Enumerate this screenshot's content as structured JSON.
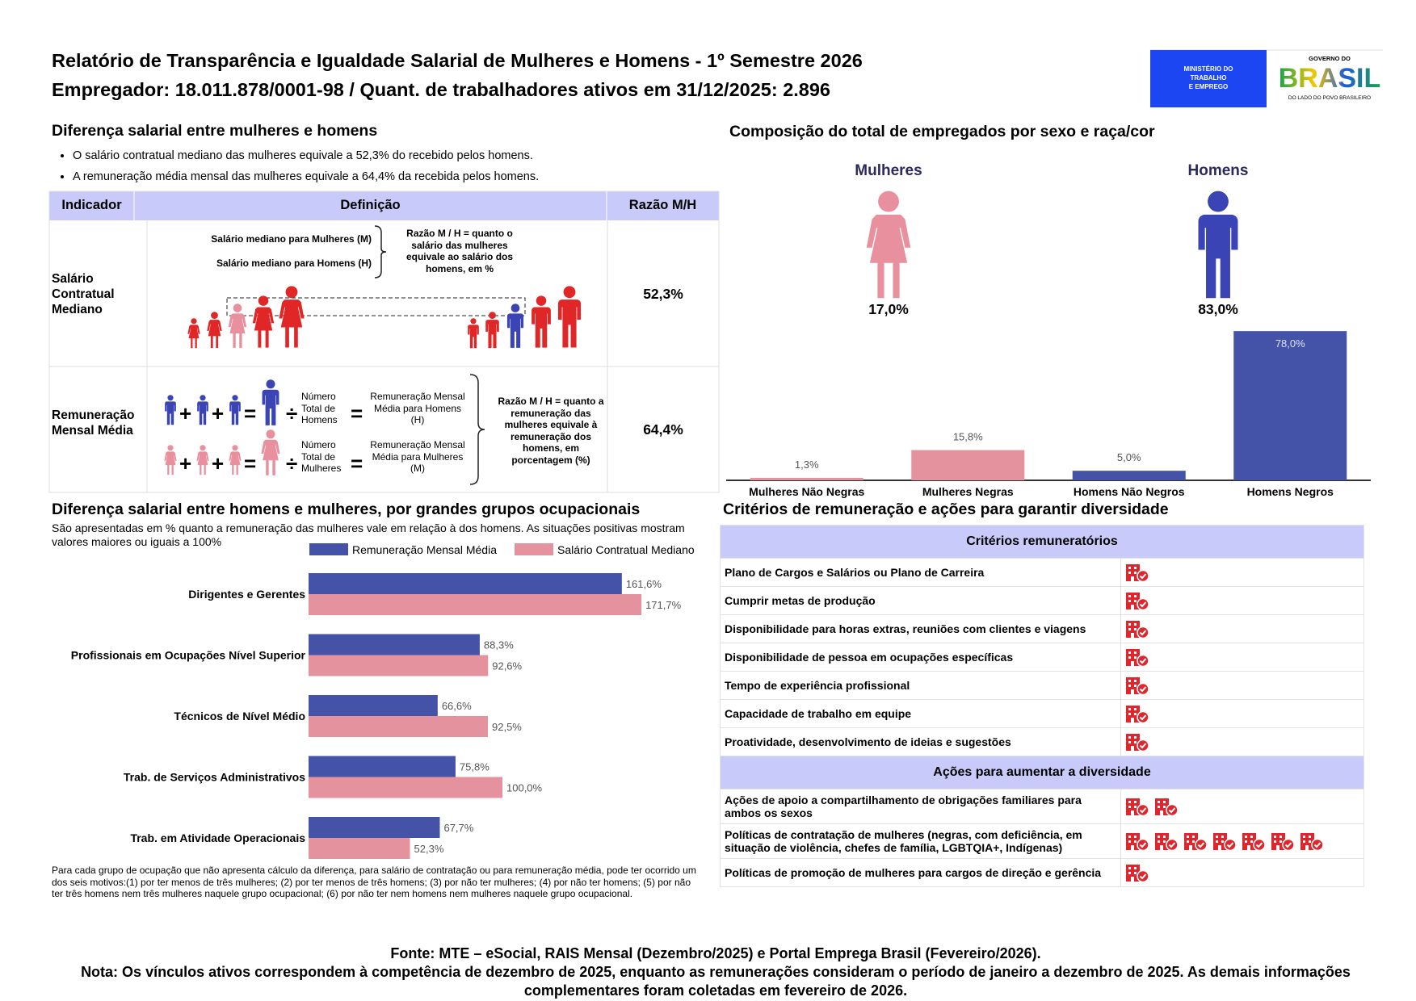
{
  "header": {
    "title": "Relatório de Transparência e Igualdade Salarial de Mulheres e Homens - 1º Semestre 2026",
    "subtitle": "Empregador: 18.011.878/0001-98 / Quant. de trabalhadores ativos em 31/12/2025: 2.896",
    "logo_ministry": [
      "MINISTÉRIO DO",
      "TRABALHO",
      "E EMPREGO"
    ],
    "logo_gov_top": "GOVERNO DO",
    "logo_gov_name": "BRASIL",
    "logo_gov_bottom": "DO LADO DO POVO BRASILEIRO"
  },
  "salary_gap": {
    "title": "Diferença salarial entre mulheres e homens",
    "bullets": [
      "O salário contratual mediano das mulheres equivale a 52,3% do recebido pelos homens.",
      "A remuneração média mensal das mulheres equivale a 64,4% da recebida pelos homens."
    ],
    "table": {
      "headers": [
        "Indicador",
        "Definição",
        "Razão M/H"
      ],
      "operators": {
        "plus": "+",
        "equals": "=",
        "divide": "÷"
      },
      "rows": [
        {
          "indicator": "Salário Contratual Mediano",
          "definition": {
            "women_label": "Salário mediano para Mulheres (M)",
            "men_label": "Salário mediano para Homens (H)",
            "ratio_note": "Razão M / H = quanto o salário das mulheres equivale ao salário dos homens, em %"
          },
          "ratio": "52,3%"
        },
        {
          "indicator": "Remuneração Mensal Média",
          "definition": {
            "men_count": "Número Total de Homens",
            "men_result": "Remuneração Mensal Média para Homens (H)",
            "women_count": "Número Total de Mulheres",
            "women_result": "Remuneração Mensal Média para Mulheres (M)",
            "ratio_note": "Razão M / H = quanto a remuneração das mulheres equivale à remuneração dos homens, em porcentagem (%)"
          },
          "ratio": "64,4%"
        }
      ]
    }
  },
  "composition": {
    "title": "Composição do total de empregados por sexo e raça/cor",
    "groups": [
      {
        "name": "Mulheres",
        "share": "17,0%"
      },
      {
        "name": "Homens",
        "share": "83,0%"
      }
    ]
  },
  "chart_data": [
    {
      "type": "bar",
      "categories": [
        "Mulheres Não Negras",
        "Mulheres Negras",
        "Homens Não Negros",
        "Homens Negros"
      ],
      "values": [
        1.3,
        15.8,
        5.0,
        78.0
      ],
      "value_labels": [
        "1,3%",
        "15,8%",
        "5,0%",
        "78,0%"
      ],
      "colors": [
        "#e4929e",
        "#e4929e",
        "#4453a8",
        "#4453a8"
      ]
    },
    {
      "type": "hbar",
      "title": "Diferença salarial entre homens e mulheres, por grandes grupos ocupacionais",
      "subtitle": "São apresentadas em % quanto a remuneração das mulheres vale em relação à dos homens. As situações positivas mostram valores maiores ou iguais a 100%",
      "categories": [
        "Dirigentes e Gerentes",
        "Profissionais em Ocupações Nível Superior",
        "Técnicos de Nível Médio",
        "Trab. de Serviços Administrativos",
        "Trab. em Atividade Operacionais"
      ],
      "series": [
        {
          "name": "Remuneração Mensal Média",
          "color": "#4453a8",
          "values": [
            161.6,
            88.3,
            66.6,
            75.8,
            67.7
          ],
          "value_labels": [
            "161,6%",
            "88,3%",
            "66,6%",
            "75,8%",
            "67,7%"
          ]
        },
        {
          "name": "Salário Contratual Mediano",
          "color": "#e4929e",
          "values": [
            171.7,
            92.6,
            92.5,
            100.0,
            52.3
          ],
          "value_labels": [
            "171,7%",
            "92,6%",
            "92,5%",
            "100,0%",
            "52,3%"
          ]
        }
      ],
      "note": "Para cada grupo de ocupação que não apresenta cálculo da diferença, para salário de contratação ou para remuneração média, pode ter ocorrido um dos seis motivos:(1) por ter menos de três mulheres; (2) por ter menos de três homens; (3) por não ter mulheres; (4) por não ter homens; (5) por não ter três homens nem três mulheres naquele grupo ocupacional; (6) por não ter nem homens nem mulheres naquele grupo ocupacional."
    }
  ],
  "criteria": {
    "title": "Critérios de remuneração e ações para garantir diversidade",
    "sections": [
      {
        "heading": "Critérios remuneratórios",
        "rows": [
          {
            "label": "Plano de Cargos e Salários ou Plano de Carreira",
            "icons": 1
          },
          {
            "label": "Cumprir metas de produção",
            "icons": 1
          },
          {
            "label": "Disponibilidade para horas extras, reuniões com clientes e viagens",
            "icons": 1
          },
          {
            "label": "Disponibilidade de pessoa em ocupações específicas",
            "icons": 1
          },
          {
            "label": "Tempo de experiência profissional",
            "icons": 1
          },
          {
            "label": "Capacidade de trabalho em equipe",
            "icons": 1
          },
          {
            "label": "Proatividade, desenvolvimento de ideias e sugestões",
            "icons": 1
          }
        ]
      },
      {
        "heading": "Ações para aumentar a diversidade",
        "rows": [
          {
            "label": "Ações de apoio a compartilhamento de obrigações familiares para ambos os sexos",
            "icons": 2
          },
          {
            "label": "Políticas de contratação de mulheres (negras, com deficiência, em situação de violência, chefes de família, LGBTQIA+, Indígenas)",
            "icons": 7
          },
          {
            "label": "Políticas de promoção de mulheres para cargos de direção e gerência",
            "icons": 1
          }
        ]
      }
    ]
  },
  "footer": {
    "source": "Fonte: MTE – eSocial, RAIS Mensal (Dezembro/2025) e Portal Emprega Brasil (Fevereiro/2026).",
    "note": "Nota: Os vínculos ativos correspondem à competência de dezembro de 2025, enquanto as remunerações consideram o período de janeiro a dezembro de 2025. As demais informações complementares foram coletadas em fevereiro de 2026."
  }
}
